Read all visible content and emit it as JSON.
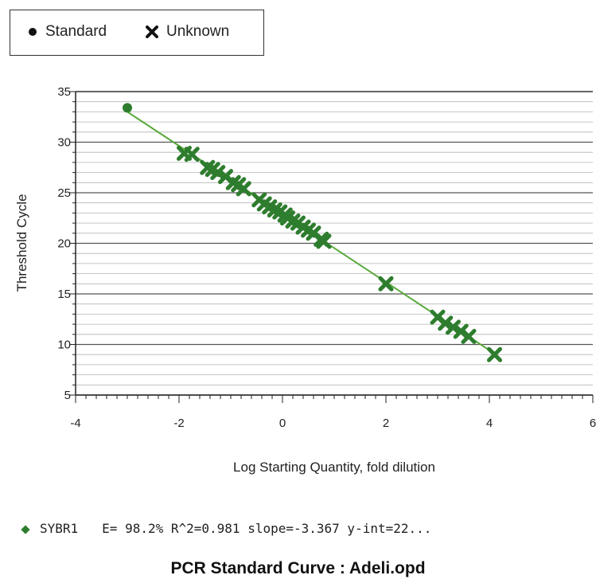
{
  "legend": {
    "items": [
      {
        "label": "Standard",
        "icon": "filled-circle-icon"
      },
      {
        "label": "Unknown",
        "icon": "x-cross-icon"
      }
    ]
  },
  "fit_label": {
    "series": "SYBR1",
    "stats": "E= 98.2% R^2=0.981 slope=-3.367 y-int=22..."
  },
  "footer_title": "PCR Standard Curve  : Adeli.opd",
  "colors": {
    "marker": "#2e7d2e",
    "line": "#5aaa3c",
    "grid": "#999999",
    "axis": "#222222"
  },
  "chart_data": {
    "type": "scatter",
    "xlabel": "Log Starting Quantity, fold dilution",
    "ylabel": "Threshold Cycle",
    "xlim": [
      -4,
      6
    ],
    "ylim": [
      5,
      35
    ],
    "x_ticks": [
      -4,
      -2,
      0,
      2,
      4,
      6
    ],
    "y_ticks": [
      5,
      10,
      15,
      20,
      25,
      30,
      35
    ],
    "grid": true,
    "legend_position": "top-left",
    "fit_line": {
      "slope": -3.367,
      "intercept": 22.9,
      "x_range": [
        -3,
        4.1
      ]
    },
    "series": [
      {
        "name": "Standard",
        "marker": "circle",
        "points": [
          [
            -3.0,
            33.4
          ]
        ]
      },
      {
        "name": "Unknown",
        "marker": "x",
        "points": [
          [
            -1.9,
            28.9
          ],
          [
            -1.75,
            28.8
          ],
          [
            -1.45,
            27.5
          ],
          [
            -1.35,
            27.3
          ],
          [
            -1.25,
            27.0
          ],
          [
            -1.1,
            26.6
          ],
          [
            -0.95,
            26.0
          ],
          [
            -0.85,
            25.8
          ],
          [
            -0.75,
            25.4
          ],
          [
            -0.45,
            24.3
          ],
          [
            -0.35,
            23.9
          ],
          [
            -0.25,
            23.6
          ],
          [
            -0.15,
            23.3
          ],
          [
            -0.05,
            23.1
          ],
          [
            0.05,
            22.8
          ],
          [
            0.1,
            22.5
          ],
          [
            0.2,
            22.2
          ],
          [
            0.3,
            22.0
          ],
          [
            0.4,
            21.6
          ],
          [
            0.5,
            21.3
          ],
          [
            0.6,
            21.0
          ],
          [
            0.75,
            20.4
          ],
          [
            0.8,
            20.2
          ],
          [
            2.0,
            16.0
          ],
          [
            3.0,
            12.7
          ],
          [
            3.15,
            12.1
          ],
          [
            3.3,
            11.7
          ],
          [
            3.45,
            11.3
          ],
          [
            3.6,
            10.8
          ],
          [
            4.1,
            9.0
          ]
        ]
      }
    ]
  }
}
